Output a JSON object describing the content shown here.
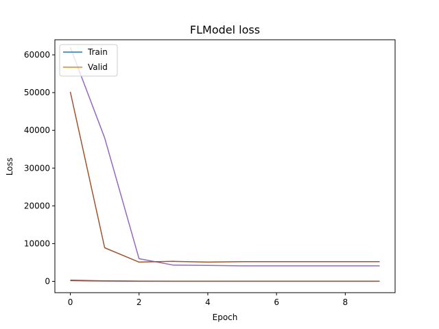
{
  "chart_data": {
    "type": "line",
    "title": "FLModel loss",
    "xlabel": "Epoch",
    "ylabel": "Loss",
    "xlim": [
      -0.45,
      9.45
    ],
    "ylim": [
      -3000,
      64000
    ],
    "xticks": [
      0,
      2,
      4,
      6,
      8
    ],
    "yticks": [
      0,
      10000,
      20000,
      30000,
      40000,
      50000,
      60000
    ],
    "grid": false,
    "legend_position": "upper-left",
    "legend": [
      {
        "label": "Train",
        "color": "#1f77b4"
      },
      {
        "label": "Valid",
        "color": "#ff7f0e"
      }
    ],
    "x": [
      0,
      1,
      2,
      3,
      4,
      5,
      6,
      7,
      8,
      9
    ],
    "series": [
      {
        "color": "#9467bd",
        "values": [
          62000,
          38000,
          6000,
          4300,
          4200,
          4100,
          4100,
          4100,
          4100,
          4100
        ]
      },
      {
        "color": "#a0522d",
        "values": [
          50200,
          8900,
          5100,
          5300,
          5100,
          5200,
          5200,
          5200,
          5200,
          5200
        ]
      },
      {
        "color": "#d62728",
        "values": [
          200,
          80,
          30,
          20,
          20,
          20,
          15,
          15,
          15,
          15
        ]
      },
      {
        "color": "#8c564b",
        "values": [
          300,
          150,
          60,
          40,
          30,
          30,
          25,
          25,
          25,
          25
        ]
      }
    ]
  }
}
